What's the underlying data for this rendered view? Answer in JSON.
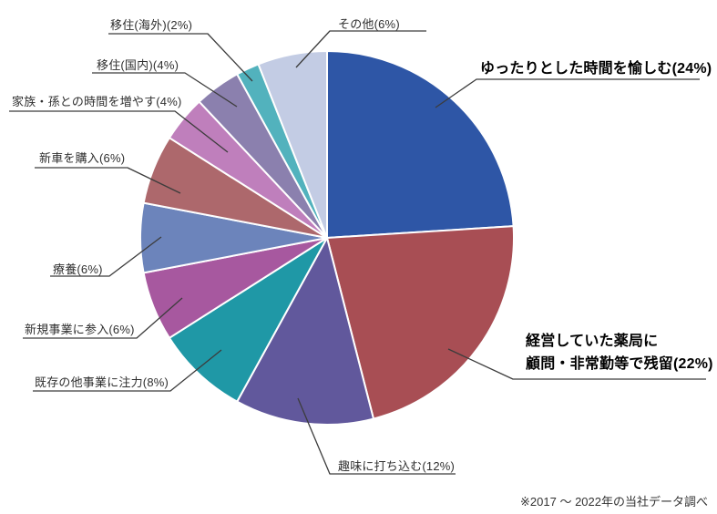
{
  "chart_data": {
    "type": "pie",
    "title": "",
    "unit": "%",
    "direction": "clockwise",
    "start_angle": "12-oclock",
    "legend_position": "callout-labels",
    "slices": [
      {
        "label": "ゆったりとした時間を愉しむ",
        "pct": 24,
        "color": "#2e56a6",
        "display": "ゆったりとした時間を愉しむ(24%)",
        "emphasis": true
      },
      {
        "label": "経営していた薬局に顧問・非常勤等で残留",
        "pct": 22,
        "color": "#a84e54",
        "display_lines": [
          "経営していた薬局に",
          "顧問・非常勤等で残留(22%)"
        ],
        "emphasis": true
      },
      {
        "label": "趣味に打ち込む",
        "pct": 12,
        "color": "#61589c",
        "display": "趣味に打ち込む(12%)",
        "emphasis": false
      },
      {
        "label": "既存の他事業に注力",
        "pct": 8,
        "color": "#1f98a6",
        "display": "既存の他事業に注力(8%)",
        "emphasis": false
      },
      {
        "label": "新規事業に参入",
        "pct": 6,
        "color": "#a7589f",
        "display": "新規事業に参入(6%)",
        "emphasis": false
      },
      {
        "label": "療養",
        "pct": 6,
        "color": "#6c84bb",
        "display": "療養(6%)",
        "emphasis": false
      },
      {
        "label": "新車を購入",
        "pct": 6,
        "color": "#ad686c",
        "display": "新車を購入(6%)",
        "emphasis": false
      },
      {
        "label": "家族・孫との時間を増やす",
        "pct": 4,
        "color": "#bf7fbc",
        "display": "家族・孫との時間を増やす(4%)",
        "emphasis": false
      },
      {
        "label": "移住(国内)",
        "pct": 4,
        "color": "#8b80ae",
        "display": "移住(国内)(4%)",
        "emphasis": false
      },
      {
        "label": "移住(海外)",
        "pct": 2,
        "color": "#52b2bd",
        "display": "移住(海外)(2%)",
        "emphasis": false
      },
      {
        "label": "その他",
        "pct": 6,
        "color": "#c3cce4",
        "display": "その他(6%)",
        "emphasis": false
      }
    ],
    "leader_line_color": "#3c3c3c",
    "slice_border_color": "#ffffff"
  },
  "footnote": "※2017 ～ 2022年の当社データ調べ"
}
